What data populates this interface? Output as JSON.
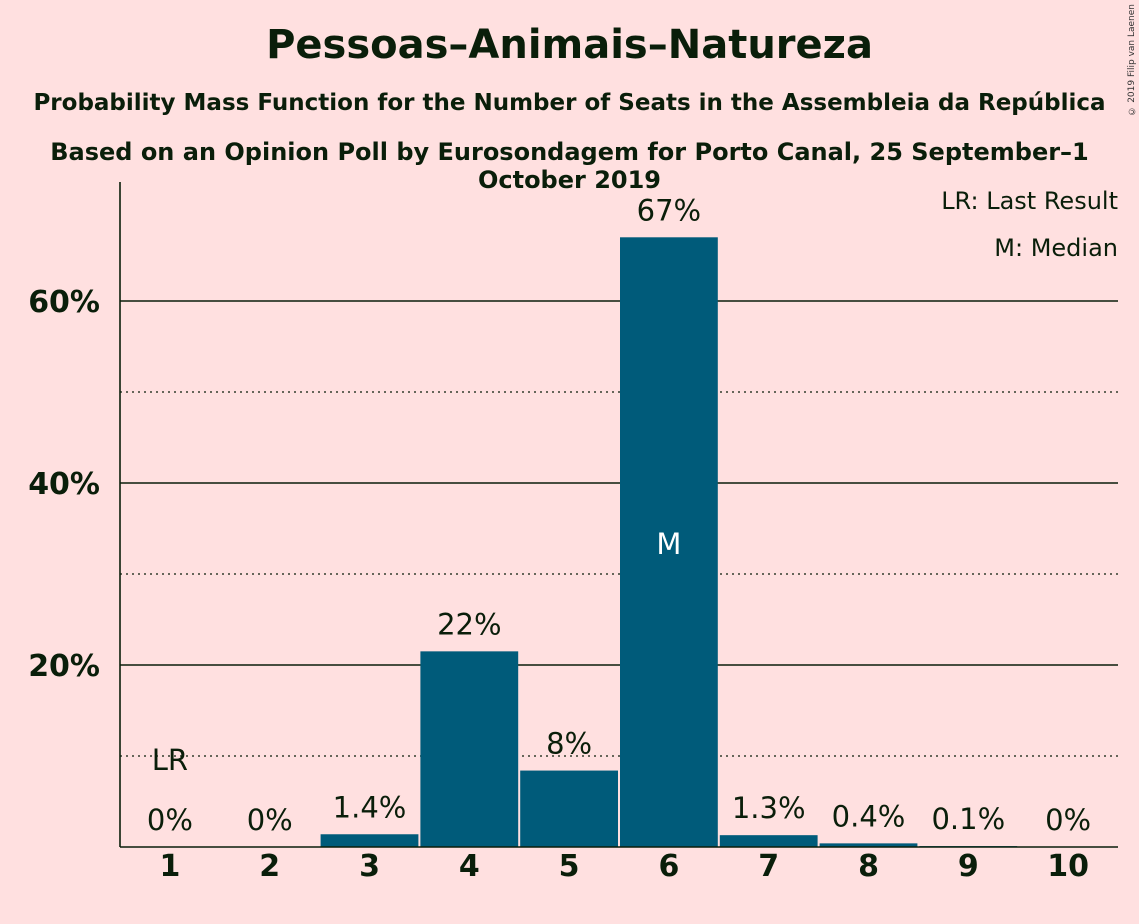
{
  "chart_data": {
    "type": "bar",
    "title": "Pessoas–Animais–Natureza",
    "subtitle": "Probability Mass Function for the Number of Seats in the Assembleia da República",
    "subtitle2": "Based on an Opinion Poll by Eurosondagem for Porto Canal, 25 September–1 October 2019",
    "copyright": "© 2019 Filip van Laenen",
    "categories": [
      "1",
      "2",
      "3",
      "4",
      "5",
      "6",
      "7",
      "8",
      "9",
      "10"
    ],
    "values": [
      0,
      0,
      1.4,
      21.5,
      8.4,
      67,
      1.3,
      0.4,
      0.1,
      0
    ],
    "value_labels": [
      "0%",
      "0%",
      "1.4%",
      "22%",
      "8%",
      "67%",
      "1.3%",
      "0.4%",
      "0.1%",
      "0%"
    ],
    "ylim": [
      0,
      72
    ],
    "yticks": [
      20,
      40,
      60
    ],
    "ytick_labels": [
      "20%",
      "40%",
      "60%"
    ],
    "minor_gridlines": [
      10,
      30,
      50
    ],
    "last_result_index": 0,
    "last_result_label": "LR",
    "median_index": 5,
    "median_label": "M",
    "legend": [
      "LR: Last Result",
      "M: Median"
    ],
    "legend_position": "top-right",
    "bar_color": "#005b7a"
  }
}
